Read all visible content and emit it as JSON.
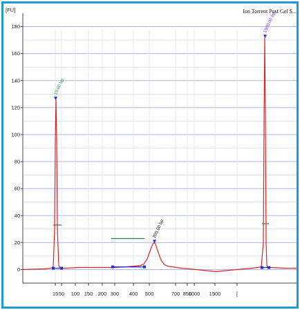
{
  "chart_data": {
    "type": "line",
    "title": "Ion Torrent Post Gel S...",
    "ylabel": "[FU]",
    "y_ticks": [
      0,
      20,
      40,
      60,
      80,
      100,
      120,
      140,
      160,
      180
    ],
    "ylim": [
      -10,
      190
    ],
    "x_tick_labels": [
      "15",
      "50",
      "100",
      "150",
      "200",
      "300",
      "400",
      "500",
      "700",
      "850",
      "1000",
      "1500",
      "["
    ],
    "x_scale": "sizing ladder (bp)",
    "grid": true,
    "series": [
      {
        "color": "#e02020",
        "x": [
          0,
          30,
          40,
          44,
          46,
          47,
          48,
          49,
          50,
          52,
          54,
          58,
          60,
          80,
          100,
          130,
          150,
          160,
          170,
          175,
          180,
          185,
          188,
          190,
          192,
          195,
          200,
          205,
          210,
          230,
          250,
          270,
          280,
          300,
          320,
          330,
          340,
          345,
          348,
          349,
          350,
          351,
          352,
          353,
          354,
          356,
          360,
          380,
          400
        ],
        "values": [
          0,
          0.5,
          1,
          2,
          30,
          95,
          126,
          95,
          30,
          3,
          1,
          1,
          1,
          1.5,
          1.5,
          1.5,
          2,
          2.5,
          3,
          4,
          8,
          15,
          19,
          20,
          19,
          14,
          7,
          3.5,
          2.5,
          1,
          0,
          -1,
          -1.5,
          -0.5,
          0.5,
          1,
          1.5,
          2,
          20,
          110,
          172,
          110,
          20,
          3,
          2,
          1.5,
          1.5,
          1,
          1
        ]
      }
    ],
    "peaks": [
      {
        "label": "15.00 bp",
        "color": "#2e9e2e",
        "x": 47.5,
        "value": 126
      },
      {
        "label": "205.00 bp",
        "color": "#111111",
        "x": 190.5,
        "value": 20
      },
      {
        "label": "1500.00 bp",
        "color": "#8a2be2",
        "x": 350.5,
        "value": 172
      }
    ],
    "marker_levels": [
      {
        "x_from": 44,
        "x_to": 56,
        "value": 33
      },
      {
        "x_from": 128,
        "x_to": 176,
        "value": 23
      },
      {
        "x_from": 346,
        "x_to": 356,
        "value": 34
      }
    ],
    "baselines": [
      {
        "x_from": 44,
        "x_to": 56,
        "value": 1
      },
      {
        "x_from": 130,
        "x_to": 176,
        "value": 2
      },
      {
        "x_from": 346,
        "x_to": 356,
        "value": 1.5
      }
    ],
    "colors": {
      "trace": "#e02020",
      "grid": "#aab6ea",
      "axis": "#444444",
      "frame": "#1b9ad6",
      "level_line": "#2a7a3a",
      "baseline": "#1a2fe0"
    }
  }
}
